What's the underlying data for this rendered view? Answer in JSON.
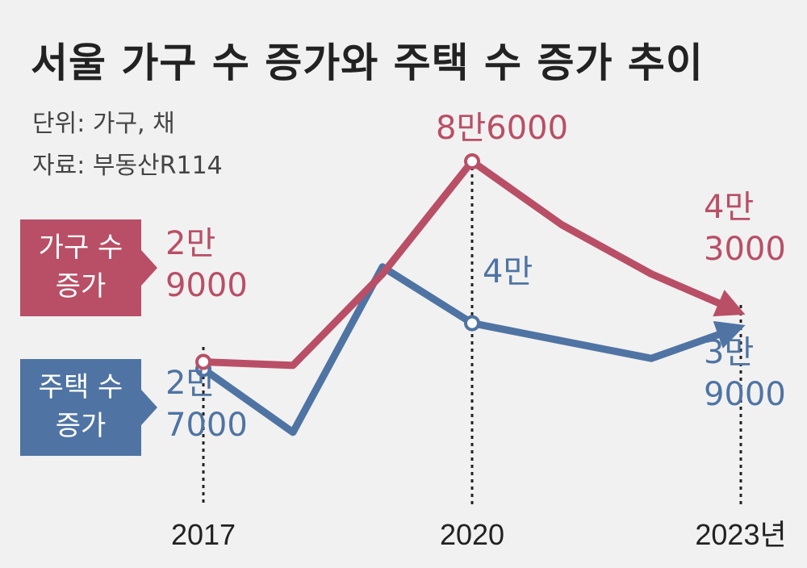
{
  "title": "서울 가구 수 증가와 주택 수 증가 추이",
  "unit": "단위: 가구, 채",
  "source": "자료: 부동산R114",
  "colors": {
    "household": "#b94f66",
    "housing": "#4f74a3",
    "background": "#f1f1f1"
  },
  "chart_data": {
    "type": "line",
    "x": [
      2017,
      2018,
      2019,
      2020,
      2021,
      2022,
      2023
    ],
    "x_tick_labels": [
      "2017",
      "2020",
      "2023년"
    ],
    "ylim": [
      0,
      100000
    ],
    "grid": false,
    "series": [
      {
        "name": "가구 수 증가",
        "legend_lines": [
          "가구 수",
          "증가"
        ],
        "values": [
          29000,
          28000,
          54000,
          86000,
          68000,
          54000,
          43000
        ],
        "labels": [
          {
            "x": 2017,
            "lines": [
              "2만",
              "9000"
            ]
          },
          {
            "x": 2020,
            "lines": [
              "8만6000"
            ]
          },
          {
            "x": 2023,
            "lines": [
              "4만",
              "3000"
            ]
          }
        ]
      },
      {
        "name": "주택 수 증가",
        "legend_lines": [
          "주택 수",
          "증가"
        ],
        "values": [
          27000,
          9000,
          56000,
          40000,
          35000,
          30000,
          39000
        ],
        "labels": [
          {
            "x": 2017,
            "lines": [
              "2만",
              "7000"
            ]
          },
          {
            "x": 2020,
            "lines": [
              "4만"
            ]
          },
          {
            "x": 2023,
            "lines": [
              "3만",
              "9000"
            ]
          }
        ]
      }
    ]
  }
}
